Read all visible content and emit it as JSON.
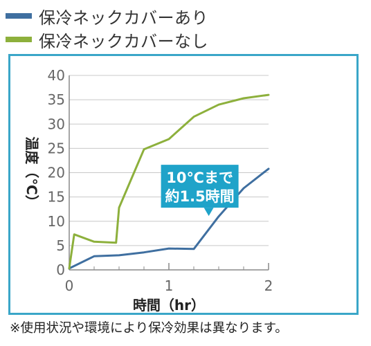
{
  "legend": [
    {
      "label": "保冷ネックカバーあり",
      "color": "#3f6fa0"
    },
    {
      "label": "保冷ネックカバーなし",
      "color": "#8db03c"
    }
  ],
  "chart_data": {
    "type": "line",
    "title": "",
    "xlabel": "時間（hr）",
    "ylabel": "温度（℃）",
    "xlim": [
      0,
      2
    ],
    "ylim": [
      0,
      40
    ],
    "xticks": [
      0,
      1,
      2
    ],
    "yticks": [
      0,
      5,
      10,
      15,
      20,
      25,
      30,
      35,
      40
    ],
    "grid": true,
    "legend_position": "top-left",
    "series": [
      {
        "name": "保冷ネックカバーあり",
        "color": "#3f6fa0",
        "points": [
          [
            0,
            0.3
          ],
          [
            0.25,
            2.8
          ],
          [
            0.5,
            3.0
          ],
          [
            0.75,
            3.6
          ],
          [
            1.0,
            4.4
          ],
          [
            1.25,
            4.3
          ],
          [
            1.5,
            11.0
          ],
          [
            1.75,
            16.8
          ],
          [
            2.0,
            20.8
          ]
        ]
      },
      {
        "name": "保冷ネックカバーなし",
        "color": "#8db03c",
        "points": [
          [
            0,
            0.3
          ],
          [
            0.05,
            7.3
          ],
          [
            0.25,
            5.8
          ],
          [
            0.47,
            5.6
          ],
          [
            0.5,
            12.8
          ],
          [
            0.75,
            24.8
          ],
          [
            1.0,
            26.9
          ],
          [
            1.25,
            31.5
          ],
          [
            1.5,
            34.0
          ],
          [
            1.75,
            35.3
          ],
          [
            2.0,
            36.0
          ]
        ]
      }
    ],
    "annotation": {
      "lines": [
        "10℃まで",
        "約1.5時間"
      ],
      "x": 1.4,
      "y": 10.8,
      "color": "#1fa3c9"
    }
  },
  "note": "※使用状況や環境により保冷効果は異なります。"
}
